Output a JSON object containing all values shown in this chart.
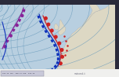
{
  "sea_color": "#b8cfe0",
  "land_color": "#ddd8c4",
  "land_color2": "#ccc8b0",
  "border_color": "#2a2a3a",
  "isobar_color": "#6699bb",
  "warm_front_color": "#cc2222",
  "cold_front_color": "#1133bb",
  "occluded_color": "#882299",
  "bottom_bar_color": "#ddddee",
  "bottom_text_color": "#444455",
  "figsize": [
    1.52,
    0.98
  ],
  "dpi": 100
}
